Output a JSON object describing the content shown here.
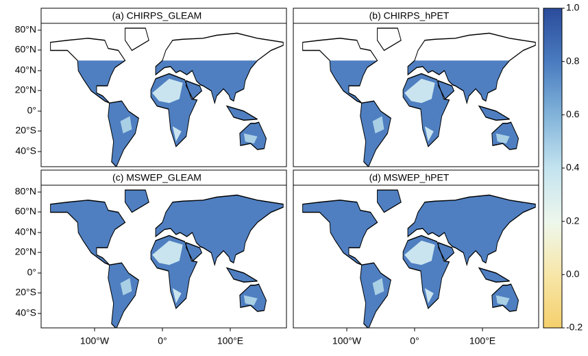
{
  "panels": [
    {
      "title": "(a) CHIRPS_GLEAM",
      "coverage": "chirps"
    },
    {
      "title": "(b) CHIRPS_hPET",
      "coverage": "chirps"
    },
    {
      "title": "(c) MSWEP_GLEAM",
      "coverage": "global"
    },
    {
      "title": "(d) MSWEP_hPET",
      "coverage": "global"
    }
  ],
  "lat_ticks": [
    "80°N",
    "60°N",
    "40°N",
    "20°N",
    "0°",
    "20°S",
    "40°S"
  ],
  "lon_ticks": [
    "100°W",
    "0°",
    "100°E"
  ],
  "colorbar": {
    "range": [
      -0.2,
      1.0
    ],
    "ticks": [
      {
        "value": 1.0,
        "label": "1.0"
      },
      0.8,
      0.6,
      0.4,
      0.2,
      {
        "value": 0.0,
        "label": "0.0"
      },
      -0.2
    ]
  }
}
